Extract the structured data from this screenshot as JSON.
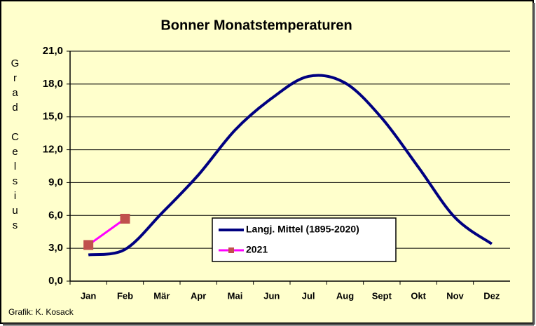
{
  "chart_data": {
    "type": "line",
    "title": "Bonner Monatstemperaturen",
    "y_label": "Grad Celsius",
    "footer": "Grafik:  K. Kosack",
    "categories": [
      "Jan",
      "Feb",
      "Mär",
      "Apr",
      "Mai",
      "Jun",
      "Jul",
      "Aug",
      "Sept",
      "Okt",
      "Nov",
      "Dez"
    ],
    "series": [
      {
        "name": "Langj. Mittel (1895-2020)",
        "color": "#000080",
        "smooth": true,
        "values": [
          2.4,
          2.9,
          6.2,
          9.7,
          13.8,
          16.7,
          18.7,
          18.1,
          14.9,
          10.4,
          5.8,
          3.4
        ]
      },
      {
        "name": "2021",
        "color": "#ff00ff",
        "marker_color": "#c0504d",
        "values": [
          3.3,
          5.7,
          null,
          null,
          null,
          null,
          null,
          null,
          null,
          null,
          null,
          null
        ]
      }
    ],
    "ylim": [
      0,
      21
    ],
    "yticks": [
      {
        "value": 0,
        "label": "0,0"
      },
      {
        "value": 3,
        "label": "3,0"
      },
      {
        "value": 6,
        "label": "6,0"
      },
      {
        "value": 9,
        "label": "9,0"
      },
      {
        "value": 12,
        "label": "12,0"
      },
      {
        "value": 15,
        "label": "15,0"
      },
      {
        "value": 18,
        "label": "18,0"
      },
      {
        "value": 21,
        "label": "21,0"
      }
    ],
    "grid": true
  }
}
